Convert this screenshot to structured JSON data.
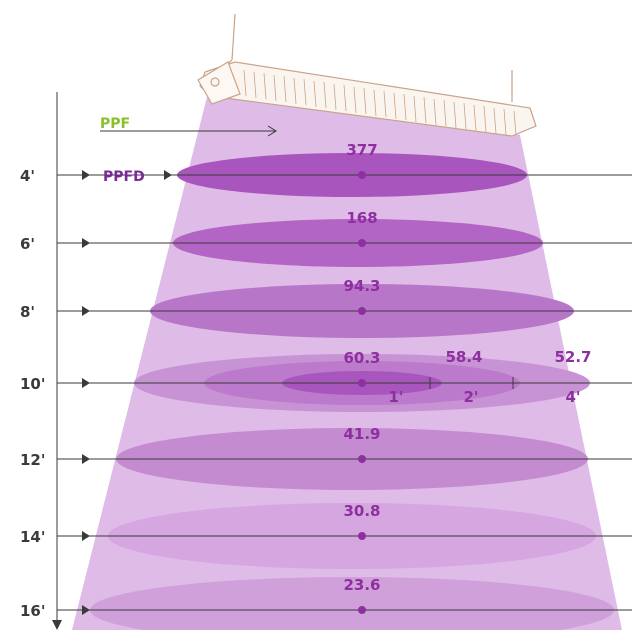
{
  "labels": {
    "ppf": "PPF",
    "ppfd": "PPFD"
  },
  "colors": {
    "cone": "#dcb4e6",
    "disc_dark": "#a855bd",
    "disc_mid": "#bb7acb",
    "disc_light": "#d49fe0",
    "dot": "#8e2fa0",
    "value_text": "#8e2fa0",
    "ppf_text": "#8bbf2a",
    "ppfd_text": "#7b2a98",
    "fixture_line": "#c9a48a",
    "axis_line": "#3a3a3a"
  },
  "levels": [
    {
      "height": "4'",
      "ppfd": "377"
    },
    {
      "height": "6'",
      "ppfd": "168"
    },
    {
      "height": "8'",
      "ppfd": "94.3"
    },
    {
      "height": "10'",
      "ppfd": "60.3"
    },
    {
      "height": "12'",
      "ppfd": "41.9"
    },
    {
      "height": "14'",
      "ppfd": "30.8"
    },
    {
      "height": "16'",
      "ppfd": "23.6"
    }
  ],
  "offset_readings": {
    "height": "10'",
    "points": [
      {
        "distance": "1'",
        "ppfd": "58.4"
      },
      {
        "distance": "2'",
        "ppfd": "52.7"
      },
      {
        "distance": "4'",
        "ppfd": ""
      }
    ]
  }
}
